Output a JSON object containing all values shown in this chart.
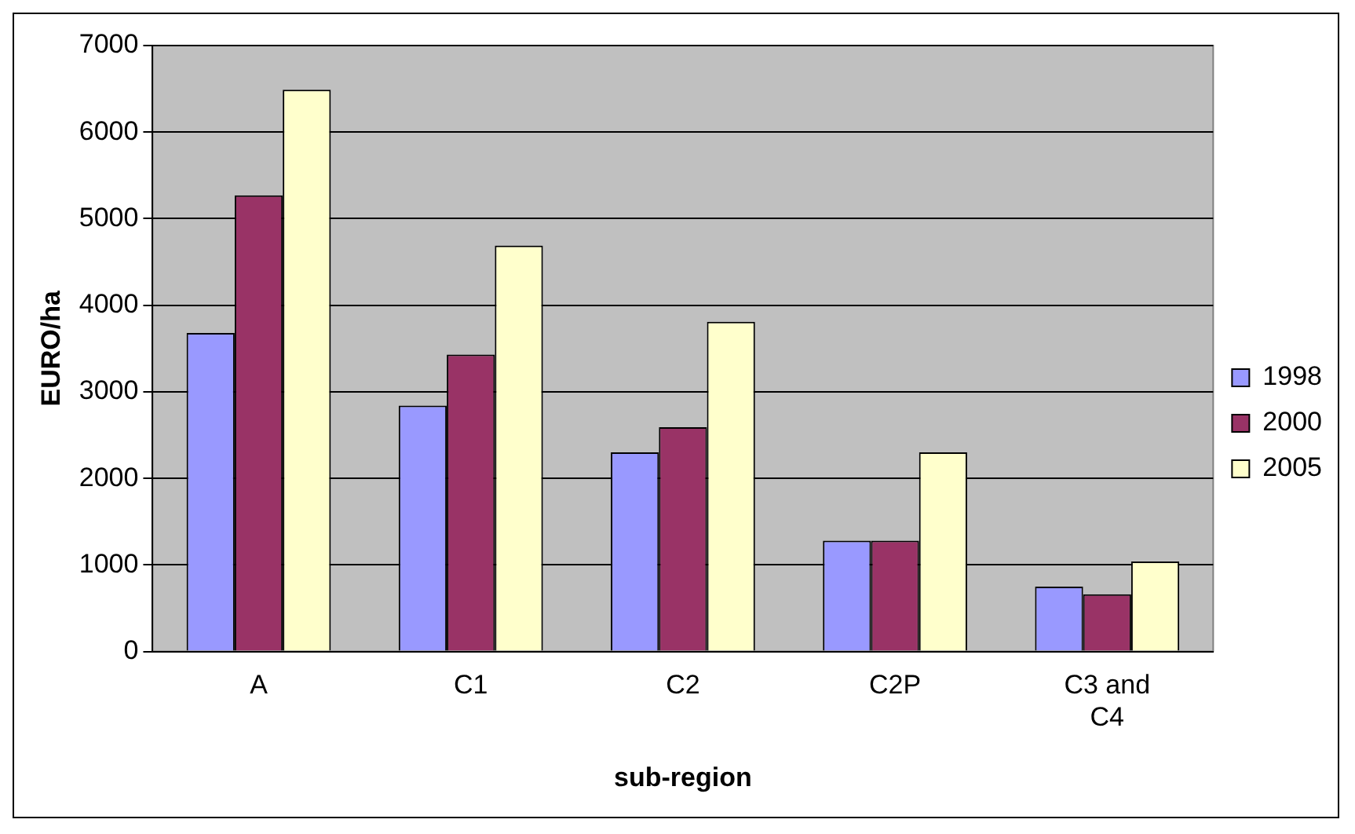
{
  "chart_data": {
    "type": "bar",
    "xlabel": "sub-region",
    "ylabel": "EURO/ha",
    "categories": [
      "A",
      "C1",
      "C2",
      "C2P",
      "C3 and C4"
    ],
    "series": [
      {
        "name": "1998",
        "color": "#9999ff",
        "values": [
          3680,
          2840,
          2300,
          1280,
          750
        ]
      },
      {
        "name": "2000",
        "color": "#993366",
        "values": [
          5270,
          3430,
          2590,
          1280,
          660
        ]
      },
      {
        "name": "2005",
        "color": "#ffffcc",
        "values": [
          6490,
          4690,
          3810,
          2300,
          1040
        ]
      }
    ],
    "ylim": [
      0,
      7000
    ],
    "yticks": [
      0,
      1000,
      2000,
      3000,
      4000,
      5000,
      6000,
      7000
    ],
    "grid": "y",
    "legend": "right"
  }
}
